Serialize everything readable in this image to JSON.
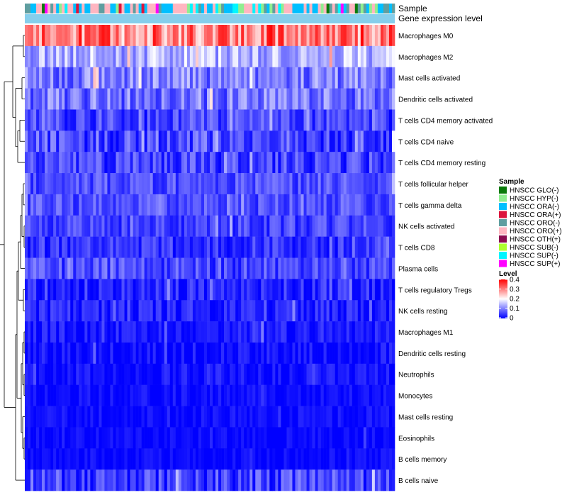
{
  "chart_data": {
    "type": "heatmap",
    "title": "",
    "annotation_tracks": [
      "Sample",
      "Gene expression level"
    ],
    "rows": [
      {
        "label": "Macrophages M0",
        "mean": 0.3,
        "spread": 0.09
      },
      {
        "label": "Macrophages M2",
        "mean": 0.14,
        "spread": 0.06
      },
      {
        "label": "Mast cells activated",
        "mean": 0.1,
        "spread": 0.06
      },
      {
        "label": "Dendritic cells activated",
        "mean": 0.09,
        "spread": 0.06
      },
      {
        "label": "T cells CD4 memory activated",
        "mean": 0.05,
        "spread": 0.05
      },
      {
        "label": "T cells CD4 naive",
        "mean": 0.06,
        "spread": 0.06
      },
      {
        "label": "T cells CD4 memory resting",
        "mean": 0.05,
        "spread": 0.05
      },
      {
        "label": "T cells follicular helper",
        "mean": 0.06,
        "spread": 0.04
      },
      {
        "label": "T cells gamma delta",
        "mean": 0.06,
        "spread": 0.04
      },
      {
        "label": "NK cells activated",
        "mean": 0.05,
        "spread": 0.04
      },
      {
        "label": "T cells CD8",
        "mean": 0.04,
        "spread": 0.04
      },
      {
        "label": "Plasma cells",
        "mean": 0.06,
        "spread": 0.05
      },
      {
        "label": "T cells regulatory  Tregs",
        "mean": 0.03,
        "spread": 0.04
      },
      {
        "label": "NK cells resting",
        "mean": 0.02,
        "spread": 0.04
      },
      {
        "label": "Macrophages M1",
        "mean": 0.02,
        "spread": 0.03
      },
      {
        "label": "Dendritic cells resting",
        "mean": 0.01,
        "spread": 0.03
      },
      {
        "label": "Neutrophils",
        "mean": 0.01,
        "spread": 0.03
      },
      {
        "label": "Monocytes",
        "mean": 0.01,
        "spread": 0.02
      },
      {
        "label": "Mast cells resting",
        "mean": 0.01,
        "spread": 0.02
      },
      {
        "label": "Eosinophils",
        "mean": 0.005,
        "spread": 0.02
      },
      {
        "label": "B cells memory",
        "mean": 0.005,
        "spread": 0.02
      },
      {
        "label": "B cells naive",
        "mean": 0.05,
        "spread": 0.06
      }
    ],
    "n_samples": 130,
    "legend": {
      "sample_title": "Sample",
      "sample_groups": [
        {
          "label": "HNSCC GLO(-)",
          "color": "#0a7a0a"
        },
        {
          "label": "HNSCC HYP(-)",
          "color": "#90ee90"
        },
        {
          "label": "HNSCC ORA(-)",
          "color": "#00bfff"
        },
        {
          "label": "HNSCC ORA(+)",
          "color": "#dc143c"
        },
        {
          "label": "HNSCC ORO(-)",
          "color": "#5f9ea0"
        },
        {
          "label": "HNSCC ORO(+)",
          "color": "#ffb6c1"
        },
        {
          "label": "HNSCC OTH(+)",
          "color": "#8b0a50"
        },
        {
          "label": "HNSCC SUB(-)",
          "color": "#adff2f"
        },
        {
          "label": "HNSCC SUP(-)",
          "color": "#00f5ff"
        },
        {
          "label": "HNSCC SUP(+)",
          "color": "#ff00ff"
        }
      ],
      "level_title": "Level",
      "level_ticks": [
        "0.4",
        "0.3",
        "0.2",
        "0.1",
        "0"
      ],
      "level_range": [
        0,
        0.4
      ],
      "level_colors": [
        "#0000ff",
        "#ffffff",
        "#ff0000"
      ]
    },
    "expression_track_color": "#87ceeb",
    "sample_track_weights": [
      0.03,
      0.08,
      0.32,
      0.03,
      0.14,
      0.32,
      0.01,
      0.02,
      0.04,
      0.01
    ]
  }
}
